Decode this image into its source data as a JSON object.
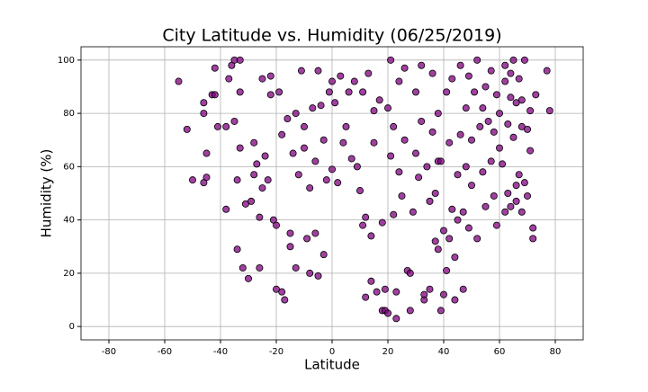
{
  "chart_data": {
    "type": "scatter",
    "title": "City Latitude vs. Humidity (06/25/2019)",
    "x_label": "Latitude",
    "y_label": "Humidity (%)",
    "x": [
      -55,
      -52,
      -50,
      -46,
      -46,
      -46,
      -45,
      -45,
      -43,
      -42,
      -42,
      -41,
      -38,
      -38,
      -37,
      -36,
      -35,
      -35,
      -34,
      -34,
      -33,
      -33,
      -33,
      -32,
      -31,
      -30,
      -29,
      -28,
      -28,
      -27,
      -26,
      -26,
      -25,
      -25,
      -24,
      -23,
      -22,
      -22,
      -21,
      -20,
      -20,
      -19,
      -18,
      -18,
      -17,
      -16,
      -15,
      -15,
      -14,
      -13,
      -13,
      -12,
      -11,
      -10,
      -10,
      -9,
      -8,
      -8,
      -7,
      -6,
      -6,
      -5,
      -5,
      -4,
      -3,
      -3,
      -2,
      -1,
      0,
      0,
      1,
      2,
      3,
      4,
      5,
      6,
      7,
      8,
      9,
      10,
      11,
      11,
      12,
      12,
      13,
      14,
      14,
      15,
      15,
      16,
      17,
      18,
      18,
      19,
      19,
      20,
      20,
      21,
      21,
      22,
      22,
      23,
      23,
      24,
      24,
      25,
      26,
      26,
      27,
      28,
      28,
      29,
      30,
      30,
      31,
      32,
      32,
      33,
      33,
      34,
      35,
      35,
      36,
      36,
      37,
      37,
      38,
      38,
      39,
      39,
      40,
      40,
      41,
      41,
      42,
      42,
      43,
      43,
      44,
      44,
      45,
      45,
      46,
      46,
      47,
      47,
      48,
      48,
      49,
      49,
      50,
      50,
      51,
      52,
      52,
      53,
      54,
      54,
      55,
      55,
      56,
      57,
      57,
      58,
      58,
      59,
      59,
      60,
      60,
      61,
      62,
      62,
      63,
      63,
      64,
      64,
      65,
      65,
      66,
      66,
      67,
      67,
      68,
      68,
      69,
      69,
      70,
      71,
      72,
      73,
      62,
      64,
      66,
      68,
      70,
      71,
      72,
      77,
      78,
      38
    ],
    "values": [
      92,
      74,
      55,
      84,
      80,
      54,
      56,
      65,
      87,
      87,
      97,
      75,
      44,
      75,
      93,
      98,
      100,
      77,
      29,
      55,
      100,
      67,
      88,
      22,
      46,
      18,
      47,
      57,
      69,
      61,
      22,
      41,
      93,
      52,
      64,
      55,
      94,
      87,
      40,
      14,
      38,
      88,
      72,
      13,
      10,
      78,
      30,
      35,
      65,
      22,
      80,
      57,
      96,
      75,
      67,
      33,
      20,
      52,
      82,
      62,
      35,
      19,
      96,
      83,
      27,
      70,
      55,
      88,
      59,
      92,
      84,
      54,
      94,
      69,
      75,
      88,
      63,
      92,
      60,
      51,
      38,
      88,
      41,
      11,
      95,
      34,
      17,
      81,
      69,
      13,
      85,
      6,
      39,
      14,
      6,
      82,
      5,
      64,
      100,
      75,
      42,
      3,
      13,
      58,
      92,
      49,
      97,
      70,
      21,
      20,
      6,
      43,
      88,
      65,
      56,
      77,
      98,
      10,
      12,
      60,
      47,
      14,
      95,
      73,
      32,
      50,
      29,
      62,
      62,
      6,
      36,
      12,
      21,
      88,
      69,
      33,
      44,
      93,
      26,
      10,
      57,
      40,
      98,
      72,
      14,
      43,
      60,
      82,
      94,
      37,
      70,
      53,
      88,
      100,
      33,
      75,
      58,
      82,
      45,
      90,
      77,
      62,
      96,
      49,
      73,
      87,
      38,
      67,
      80,
      61,
      43,
      92,
      50,
      76,
      45,
      86,
      100,
      71,
      53,
      84,
      57,
      93,
      43,
      75,
      100,
      54,
      49,
      81,
      33,
      87,
      98,
      95,
      47,
      85,
      74,
      66,
      37,
      96,
      81,
      80
    ],
    "color": "#800080",
    "xlim": [
      -90,
      90
    ],
    "ylim": [
      -5,
      105
    ],
    "xticks": [
      -80,
      -60,
      -40,
      -20,
      0,
      20,
      40,
      60,
      80
    ],
    "yticks": [
      0,
      20,
      40,
      60,
      80,
      100
    ],
    "grid": true
  }
}
